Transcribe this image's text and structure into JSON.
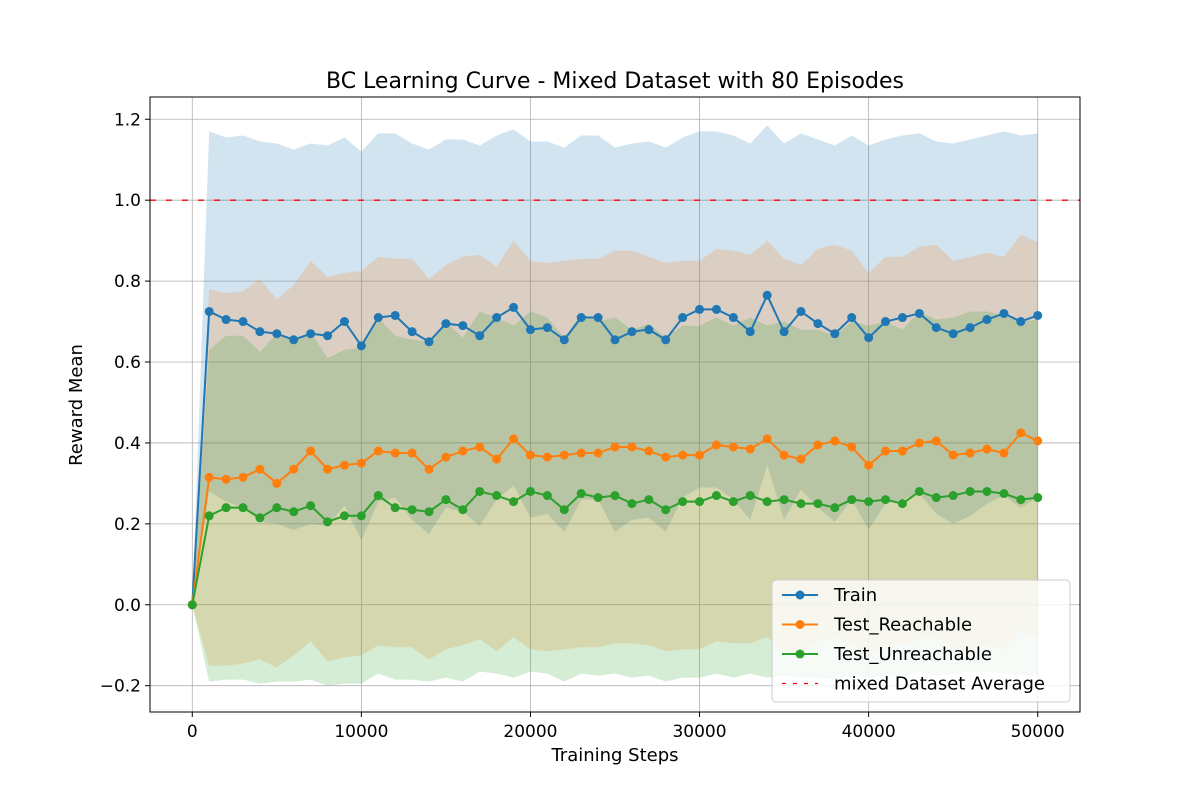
{
  "chart_data": {
    "type": "line",
    "title": "BC Learning Curve - Mixed Dataset with 80 Episodes",
    "xlabel": "Training Steps",
    "ylabel": "Reward Mean",
    "xlim": [
      -2500,
      52500
    ],
    "ylim": [
      -0.265,
      1.255
    ],
    "xticks": [
      0,
      10000,
      20000,
      30000,
      40000,
      50000
    ],
    "yticks": [
      -0.2,
      0.0,
      0.2,
      0.4,
      0.6,
      0.8,
      1.0,
      1.2
    ],
    "xtick_labels": [
      "0",
      "10000",
      "20000",
      "30000",
      "40000",
      "50000"
    ],
    "ytick_labels": [
      "−0.2",
      "0.0",
      "0.2",
      "0.4",
      "0.6",
      "0.8",
      "1.0",
      "1.2"
    ],
    "grid": true,
    "legend_position": "lower-right",
    "x": [
      0,
      1000,
      2000,
      3000,
      4000,
      5000,
      6000,
      7000,
      8000,
      9000,
      10000,
      11000,
      12000,
      13000,
      14000,
      15000,
      16000,
      17000,
      18000,
      19000,
      20000,
      21000,
      22000,
      23000,
      24000,
      25000,
      26000,
      27000,
      28000,
      29000,
      30000,
      31000,
      32000,
      33000,
      34000,
      35000,
      36000,
      37000,
      38000,
      39000,
      40000,
      41000,
      42000,
      43000,
      44000,
      45000,
      46000,
      47000,
      48000,
      49000,
      50000
    ],
    "series": [
      {
        "name": "Train",
        "color": "#1f77b4",
        "marker": "circle",
        "values": [
          0.0,
          0.725,
          0.705,
          0.7,
          0.675,
          0.67,
          0.655,
          0.67,
          0.665,
          0.7,
          0.64,
          0.71,
          0.715,
          0.675,
          0.65,
          0.695,
          0.69,
          0.665,
          0.71,
          0.735,
          0.68,
          0.685,
          0.655,
          0.71,
          0.71,
          0.655,
          0.675,
          0.68,
          0.655,
          0.71,
          0.73,
          0.73,
          0.71,
          0.675,
          0.765,
          0.675,
          0.725,
          0.695,
          0.67,
          0.71,
          0.66,
          0.7,
          0.71,
          0.72,
          0.685,
          0.67,
          0.685,
          0.705,
          0.72,
          0.7,
          0.715
        ],
        "upper": [
          0.0,
          1.17,
          1.155,
          1.16,
          1.145,
          1.14,
          1.125,
          1.14,
          1.135,
          1.155,
          1.12,
          1.165,
          1.165,
          1.14,
          1.125,
          1.15,
          1.15,
          1.135,
          1.16,
          1.175,
          1.145,
          1.145,
          1.13,
          1.16,
          1.16,
          1.13,
          1.14,
          1.145,
          1.13,
          1.155,
          1.17,
          1.17,
          1.16,
          1.14,
          1.185,
          1.14,
          1.165,
          1.15,
          1.135,
          1.16,
          1.135,
          1.15,
          1.16,
          1.165,
          1.145,
          1.14,
          1.15,
          1.16,
          1.17,
          1.16,
          1.165
        ],
        "lower": [
          0.0,
          0.28,
          0.255,
          0.24,
          0.205,
          0.2,
          0.185,
          0.2,
          0.195,
          0.245,
          0.16,
          0.255,
          0.265,
          0.21,
          0.175,
          0.24,
          0.23,
          0.195,
          0.26,
          0.295,
          0.215,
          0.225,
          0.18,
          0.26,
          0.26,
          0.18,
          0.21,
          0.215,
          0.18,
          0.265,
          0.29,
          0.29,
          0.26,
          0.21,
          0.345,
          0.21,
          0.285,
          0.24,
          0.205,
          0.26,
          0.185,
          0.25,
          0.26,
          0.275,
          0.225,
          0.2,
          0.22,
          0.25,
          0.27,
          0.24,
          0.265
        ]
      },
      {
        "name": "Test_Reachable",
        "color": "#ff7f0e",
        "marker": "circle",
        "values": [
          0.0,
          0.315,
          0.31,
          0.315,
          0.335,
          0.3,
          0.335,
          0.38,
          0.335,
          0.345,
          0.35,
          0.38,
          0.375,
          0.375,
          0.335,
          0.365,
          0.38,
          0.39,
          0.36,
          0.41,
          0.37,
          0.365,
          0.37,
          0.375,
          0.375,
          0.39,
          0.39,
          0.38,
          0.365,
          0.37,
          0.37,
          0.395,
          0.39,
          0.385,
          0.41,
          0.37,
          0.36,
          0.395,
          0.405,
          0.39,
          0.345,
          0.38,
          0.38,
          0.4,
          0.405,
          0.37,
          0.375,
          0.385,
          0.375,
          0.425,
          0.405
        ],
        "upper": [
          0.0,
          0.78,
          0.77,
          0.775,
          0.805,
          0.755,
          0.79,
          0.85,
          0.81,
          0.82,
          0.825,
          0.86,
          0.855,
          0.855,
          0.805,
          0.84,
          0.86,
          0.865,
          0.835,
          0.9,
          0.85,
          0.845,
          0.85,
          0.855,
          0.855,
          0.875,
          0.875,
          0.86,
          0.845,
          0.85,
          0.85,
          0.88,
          0.875,
          0.865,
          0.9,
          0.855,
          0.84,
          0.88,
          0.89,
          0.875,
          0.82,
          0.86,
          0.86,
          0.885,
          0.89,
          0.85,
          0.86,
          0.87,
          0.86,
          0.915,
          0.895
        ],
        "lower": [
          0.0,
          -0.15,
          -0.15,
          -0.145,
          -0.135,
          -0.155,
          -0.125,
          -0.09,
          -0.14,
          -0.13,
          -0.125,
          -0.1,
          -0.105,
          -0.105,
          -0.135,
          -0.11,
          -0.1,
          -0.085,
          -0.115,
          -0.08,
          -0.11,
          -0.115,
          -0.11,
          -0.105,
          -0.105,
          -0.095,
          -0.095,
          -0.1,
          -0.115,
          -0.11,
          -0.11,
          -0.09,
          -0.095,
          -0.095,
          -0.08,
          -0.115,
          -0.12,
          -0.09,
          -0.08,
          -0.095,
          -0.13,
          -0.1,
          -0.1,
          -0.085,
          -0.08,
          -0.11,
          -0.11,
          -0.1,
          -0.11,
          -0.065,
          -0.085
        ]
      },
      {
        "name": "Test_Unreachable",
        "color": "#2ca02c",
        "marker": "circle",
        "values": [
          0.0,
          0.22,
          0.24,
          0.24,
          0.215,
          0.24,
          0.23,
          0.245,
          0.205,
          0.22,
          0.22,
          0.27,
          0.24,
          0.235,
          0.23,
          0.26,
          0.235,
          0.28,
          0.27,
          0.255,
          0.28,
          0.27,
          0.235,
          0.275,
          0.265,
          0.27,
          0.25,
          0.26,
          0.235,
          0.255,
          0.255,
          0.27,
          0.255,
          0.27,
          0.255,
          0.26,
          0.25,
          0.25,
          0.24,
          0.26,
          0.255,
          0.26,
          0.25,
          0.28,
          0.265,
          0.27,
          0.28,
          0.28,
          0.275,
          0.26,
          0.265
        ],
        "upper": [
          0.0,
          0.63,
          0.665,
          0.665,
          0.625,
          0.67,
          0.65,
          0.675,
          0.61,
          0.63,
          0.635,
          0.71,
          0.665,
          0.655,
          0.65,
          0.7,
          0.66,
          0.725,
          0.71,
          0.69,
          0.725,
          0.71,
          0.66,
          0.72,
          0.7,
          0.71,
          0.68,
          0.695,
          0.66,
          0.69,
          0.69,
          0.71,
          0.69,
          0.71,
          0.69,
          0.7,
          0.68,
          0.68,
          0.665,
          0.7,
          0.69,
          0.7,
          0.68,
          0.725,
          0.705,
          0.71,
          0.725,
          0.725,
          0.715,
          0.7,
          0.705
        ],
        "lower": [
          0.0,
          -0.19,
          -0.185,
          -0.185,
          -0.195,
          -0.19,
          -0.19,
          -0.185,
          -0.2,
          -0.195,
          -0.195,
          -0.17,
          -0.185,
          -0.185,
          -0.19,
          -0.18,
          -0.19,
          -0.165,
          -0.17,
          -0.18,
          -0.165,
          -0.17,
          -0.19,
          -0.17,
          -0.175,
          -0.17,
          -0.18,
          -0.175,
          -0.19,
          -0.18,
          -0.18,
          -0.17,
          -0.18,
          -0.17,
          -0.18,
          -0.175,
          -0.18,
          -0.18,
          -0.185,
          -0.175,
          -0.18,
          -0.175,
          -0.18,
          -0.165,
          -0.175,
          -0.17,
          -0.165,
          -0.165,
          -0.17,
          -0.175,
          -0.175
        ]
      }
    ],
    "reference_line": {
      "name": "mixed Dataset Average",
      "y": 1.0,
      "color": "#ff0000",
      "style": "dashed"
    }
  }
}
